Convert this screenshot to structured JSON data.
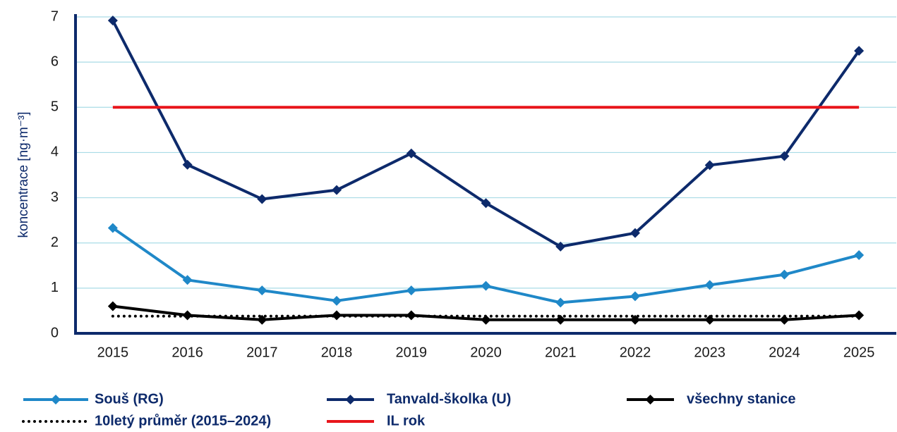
{
  "chart_data": {
    "type": "line",
    "y_label": "koncentrace [ng·m⁻³]",
    "categories": [
      "2015",
      "2016",
      "2017",
      "2018",
      "2019",
      "2020",
      "2021",
      "2022",
      "2023",
      "2024",
      "2025"
    ],
    "series": [
      {
        "name": "Souš (RG)",
        "color": "#1f88c8",
        "marker": "diamond",
        "values": [
          2.33,
          1.18,
          0.95,
          0.72,
          0.95,
          1.05,
          0.68,
          0.82,
          1.07,
          1.3,
          1.73
        ]
      },
      {
        "name": "Tanvald-školka (U)",
        "color": "#0d2a6b",
        "marker": "diamond",
        "values": [
          6.92,
          3.73,
          2.97,
          3.17,
          3.98,
          2.88,
          1.92,
          2.22,
          3.72,
          3.92,
          6.25
        ]
      },
      {
        "name": "všechny stanice",
        "color": "#000000",
        "marker": "diamond",
        "values": [
          0.6,
          0.4,
          0.3,
          0.4,
          0.4,
          0.3,
          0.3,
          0.3,
          0.3,
          0.3,
          0.4
        ]
      },
      {
        "name": "10letý průměr (2015–2024)",
        "color": "#000000",
        "dash": "dotted",
        "values": [
          0.38,
          0.38,
          0.38,
          0.38,
          0.38,
          0.38,
          0.38,
          0.38,
          0.38,
          0.38,
          0.38
        ]
      },
      {
        "name": "IL rok",
        "color": "#e8151b",
        "values": [
          5,
          5,
          5,
          5,
          5,
          5,
          5,
          5,
          5,
          5,
          5
        ]
      }
    ],
    "ylim": [
      0,
      7
    ],
    "yticks": [
      0,
      1,
      2,
      3,
      4,
      5,
      6,
      7
    ],
    "grid": true,
    "legend": "bottom"
  }
}
